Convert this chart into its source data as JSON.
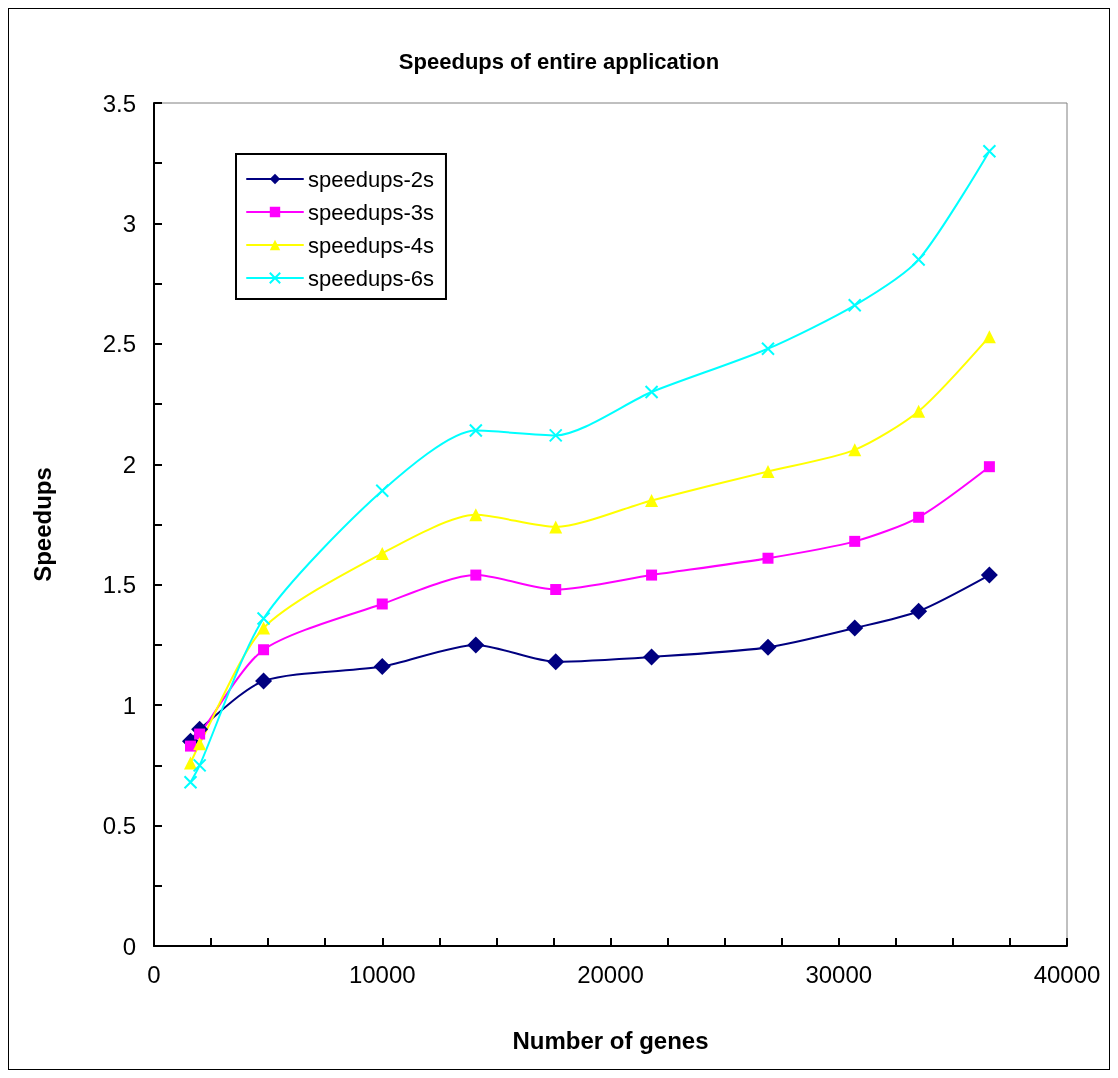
{
  "chart_data": {
    "type": "line",
    "title": "Speedups of entire application",
    "xlabel": "Number of genes",
    "ylabel": "Speedups",
    "x": [
      1600,
      2000,
      4800,
      10000,
      14100,
      17600,
      21800,
      26900,
      30700,
      33500,
      36600
    ],
    "series": [
      {
        "name": "speedups-2s",
        "color": "#000080",
        "marker": "diamond",
        "values": [
          0.85,
          0.9,
          1.1,
          1.16,
          1.25,
          1.18,
          1.2,
          1.24,
          1.32,
          1.39,
          1.54
        ]
      },
      {
        "name": "speedups-3s",
        "color": "#ff00ff",
        "marker": "square",
        "values": [
          0.83,
          0.88,
          1.23,
          1.42,
          1.54,
          1.48,
          1.54,
          1.61,
          1.68,
          1.78,
          1.99
        ]
      },
      {
        "name": "speedups-4s",
        "color": "#ffff00",
        "marker": "triangle",
        "values": [
          0.76,
          0.84,
          1.32,
          1.63,
          1.79,
          1.74,
          1.85,
          1.97,
          2.06,
          2.22,
          2.53
        ]
      },
      {
        "name": "speedups-6s",
        "color": "#00ffff",
        "marker": "cross",
        "values": [
          0.68,
          0.75,
          1.36,
          1.89,
          2.14,
          2.12,
          2.3,
          2.48,
          2.66,
          2.85,
          3.3
        ]
      }
    ],
    "xlim": [
      0,
      40000
    ],
    "xticks": [
      0,
      {
        "value": 2500,
        "label": null
      },
      {
        "value": 5000,
        "label": null
      },
      {
        "value": 7500,
        "label": null
      },
      10000,
      {
        "value": 12500,
        "label": null
      },
      {
        "value": 15000,
        "label": null
      },
      {
        "value": 17500,
        "label": null
      },
      20000,
      {
        "value": 22500,
        "label": null
      },
      {
        "value": 25000,
        "label": null
      },
      {
        "value": 27500,
        "label": null
      },
      30000,
      {
        "value": 32500,
        "label": null
      },
      {
        "value": 35000,
        "label": null
      },
      {
        "value": 37500,
        "label": null
      },
      40000
    ],
    "ylim": [
      0,
      3.5
    ],
    "yticks": [
      0,
      {
        "value": 0.25,
        "label": null
      },
      0.5,
      {
        "value": 0.75,
        "label": null
      },
      1,
      {
        "value": 1.25,
        "label": null
      },
      1.5,
      {
        "value": 1.75,
        "label": null
      },
      2,
      {
        "value": 2.25,
        "label": null
      },
      2.5,
      {
        "value": 2.75,
        "label": null
      },
      3,
      {
        "value": 3.25,
        "label": null
      },
      3.5
    ],
    "grid": false,
    "legend": "top left"
  }
}
